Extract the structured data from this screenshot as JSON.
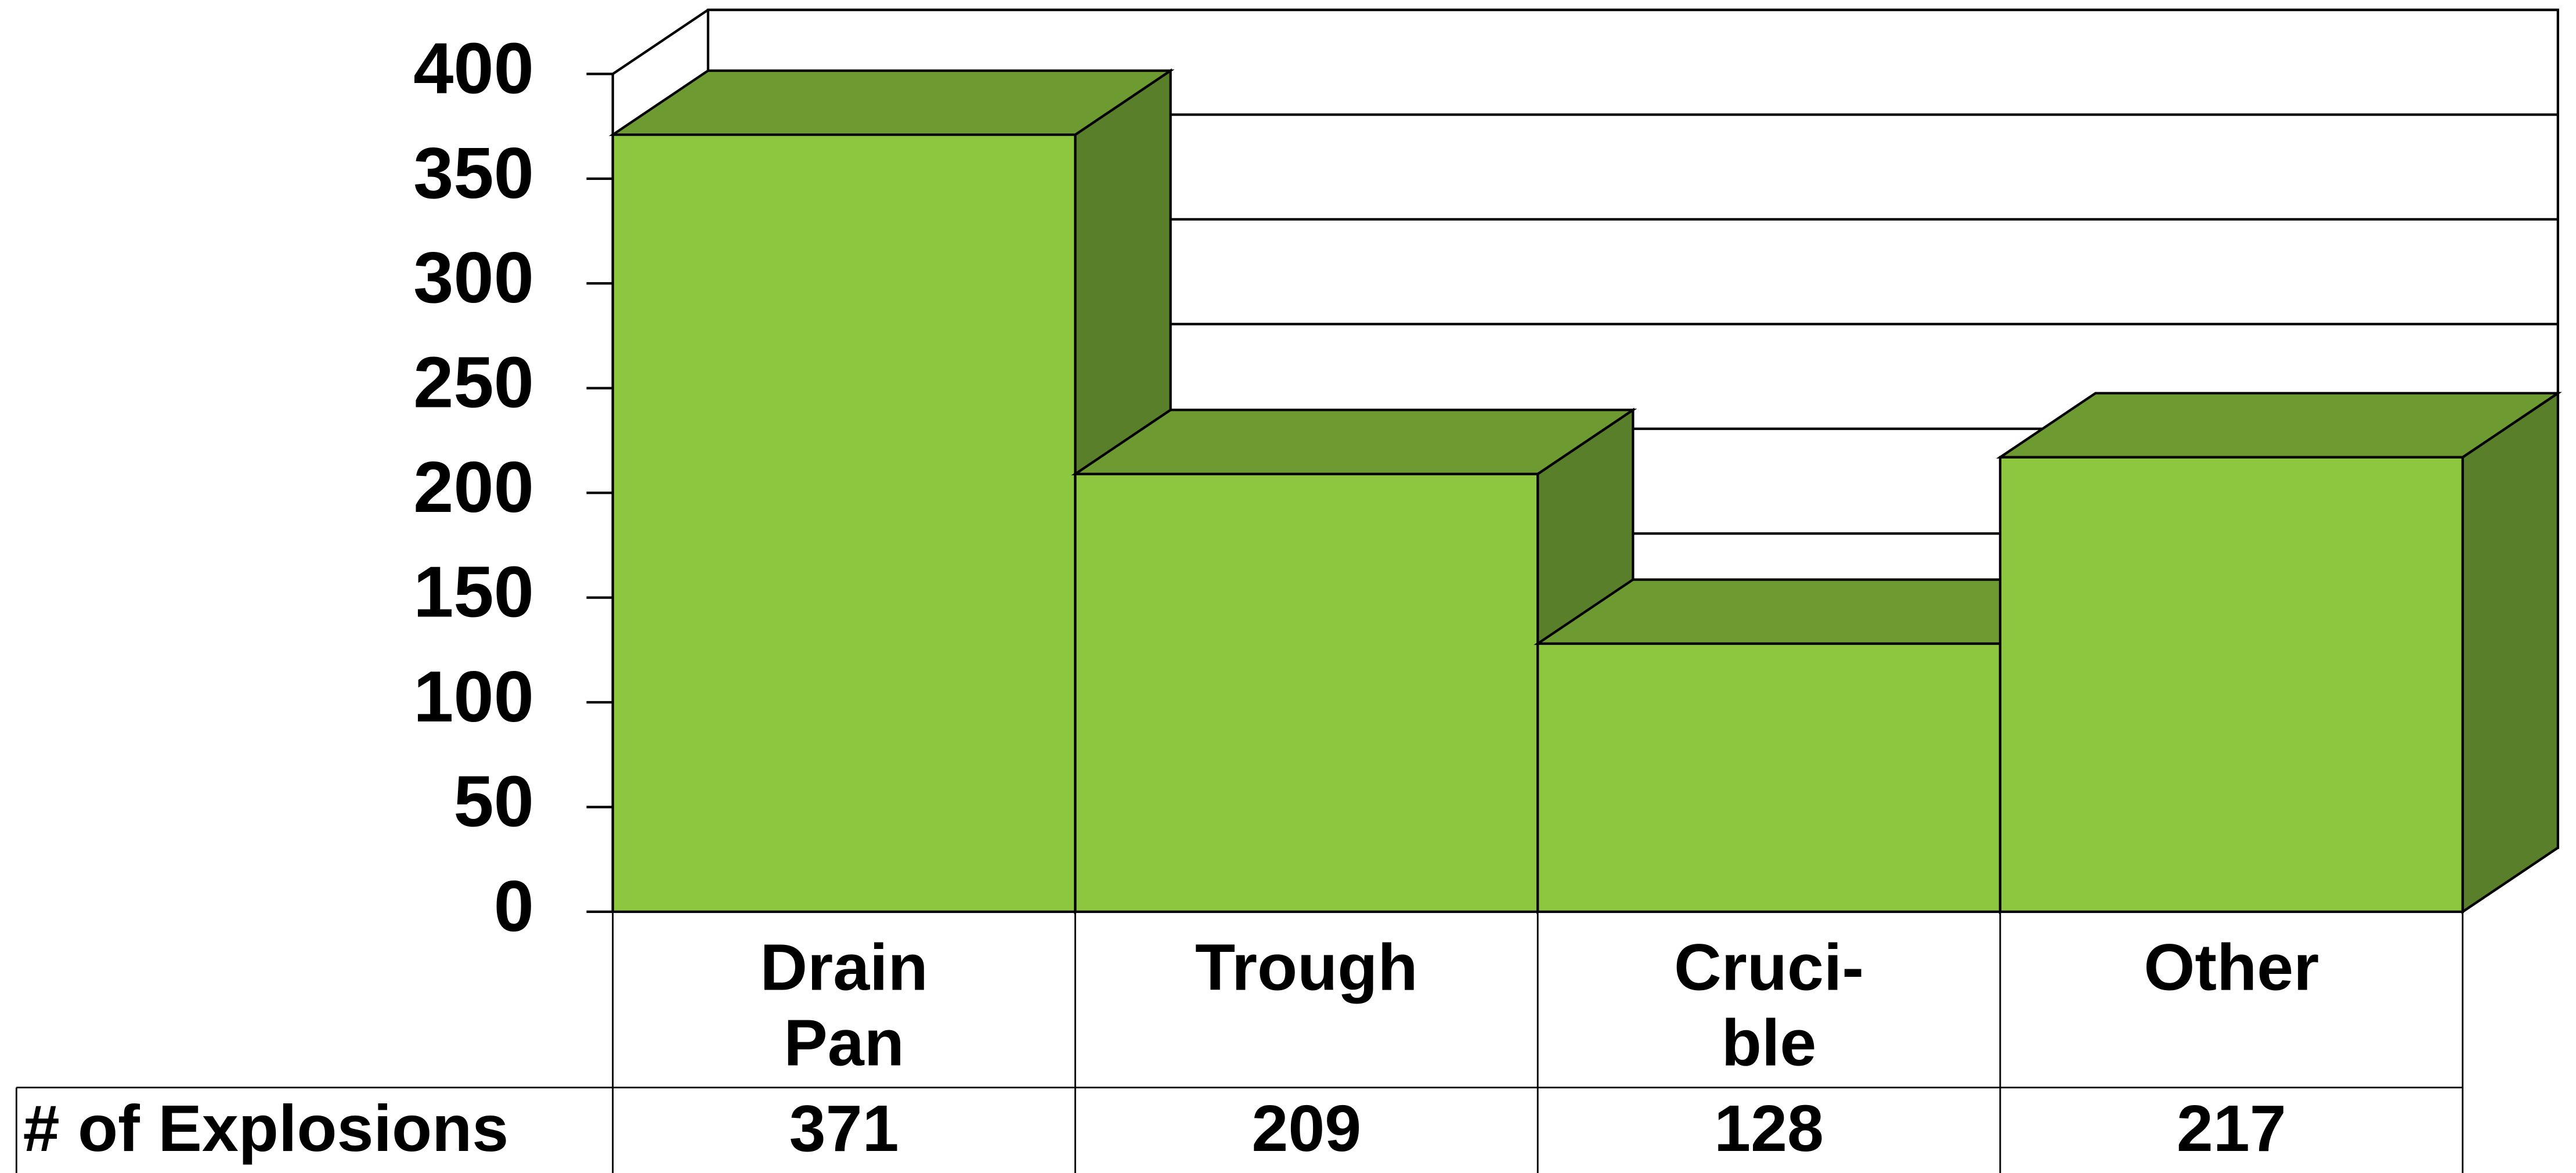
{
  "chart_data": {
    "type": "bar3d",
    "categories": [
      [
        "Drain",
        "Pan"
      ],
      [
        "Trough"
      ],
      [
        "Cruci-",
        "ble"
      ],
      [
        "Other"
      ]
    ],
    "series": [
      {
        "name": "# of Explosions",
        "color": "#8dc63f",
        "values": [
          371,
          209,
          128,
          217
        ]
      }
    ],
    "ylim": [
      0,
      400
    ],
    "yticks": [
      0,
      50,
      100,
      150,
      200,
      250,
      300,
      350,
      400
    ],
    "grid": true
  }
}
